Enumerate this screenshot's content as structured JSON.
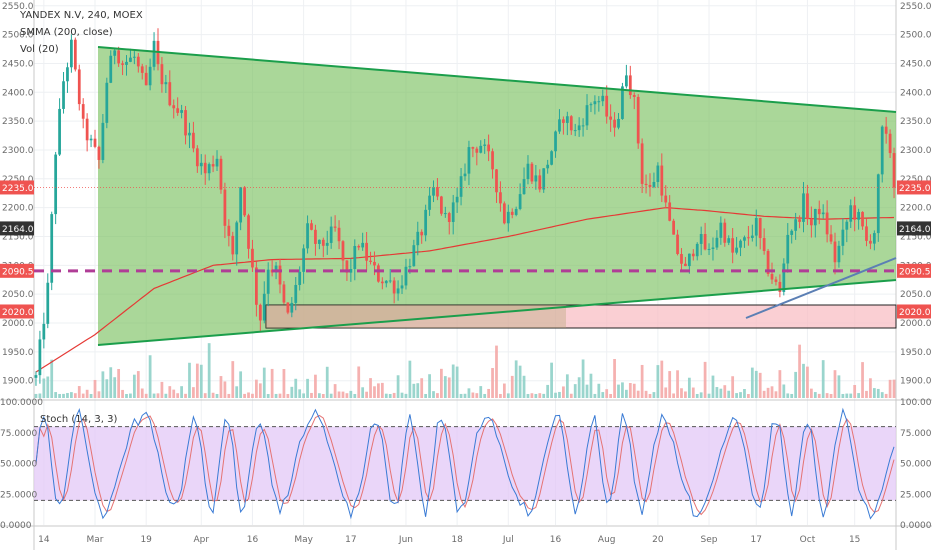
{
  "header": {
    "symbol": "YANDEX N.V, 240, MOEX",
    "indicator_smma": "SMMA (200, close)",
    "indicator_vol": "Vol (20)",
    "indicator_stoch": "Stoch (14, 3, 3)"
  },
  "colors": {
    "up": "#26a69a",
    "down": "#ef5350",
    "triangle_fill": "#7cc163",
    "triangle_line": "#1b9e4b",
    "smma": "#e53935",
    "support_dash": "#b03d96",
    "zone_fill": "#f8bbc0",
    "stoch_band": "#e3c8f7",
    "stoch_k": "#3a7bd5",
    "stoch_d": "#e57373",
    "trend_blue": "#5b7fb4"
  },
  "chart_data": [
    {
      "type": "candlestick",
      "panel": "price",
      "ylim": [
        1870,
        2560
      ],
      "y_ticks": [
        "2550.0",
        "2500.0",
        "2450.0",
        "2400.0",
        "2350.0",
        "2300.0",
        "2250.0",
        "2200.0",
        "2150.0",
        "2100.0",
        "2050.0",
        "2000.0",
        "1950.0",
        "1900.0"
      ],
      "price_labels_left": [
        {
          "value": 2235.0,
          "text": "2235.0",
          "color": "#ef5350"
        },
        {
          "value": 2164.0,
          "text": "2164.0",
          "color": "#333333"
        },
        {
          "value": 2090.5,
          "text": "2090.5",
          "color": "#ef5350"
        },
        {
          "value": 2020.0,
          "text": "2020.0",
          "color": "#ef5350"
        }
      ],
      "price_labels_right": [
        {
          "value": 2235.0,
          "text": "2235.0",
          "color": "#ef5350"
        },
        {
          "value": 2164.0,
          "text": "2164.0",
          "color": "#333333"
        },
        {
          "value": 2090.5,
          "text": "2090.5",
          "color": "#ef5350"
        },
        {
          "value": 2020.0,
          "text": "2020.0",
          "color": "#ef5350"
        }
      ],
      "x_ticks": [
        "14",
        "Mar",
        "19",
        "Apr",
        "16",
        "May",
        "17",
        "Jun",
        "18",
        "Jul",
        "16",
        "Aug",
        "20",
        "Sep",
        "17",
        "Oct",
        "15"
      ],
      "path_keypoints": [
        [
          0,
          1905
        ],
        [
          3,
          2060
        ],
        [
          5,
          2300
        ],
        [
          7,
          2420
        ],
        [
          9,
          2480
        ],
        [
          10,
          2430
        ],
        [
          12,
          2340
        ],
        [
          14,
          2310
        ],
        [
          16,
          2280
        ],
        [
          18,
          2420
        ],
        [
          20,
          2480
        ],
        [
          22,
          2450
        ],
        [
          25,
          2460
        ],
        [
          28,
          2400
        ],
        [
          30,
          2480
        ],
        [
          31,
          2440
        ],
        [
          34,
          2390
        ],
        [
          37,
          2360
        ],
        [
          40,
          2300
        ],
        [
          43,
          2260
        ],
        [
          46,
          2290
        ],
        [
          48,
          2180
        ],
        [
          50,
          2110
        ],
        [
          52,
          2240
        ],
        [
          54,
          2140
        ],
        [
          56,
          2040
        ],
        [
          57,
          2010
        ],
        [
          59,
          2100
        ],
        [
          61,
          2090
        ],
        [
          63,
          2030
        ],
        [
          64,
          2010
        ],
        [
          66,
          2060
        ],
        [
          69,
          2160
        ],
        [
          72,
          2130
        ],
        [
          76,
          2160
        ],
        [
          79,
          2080
        ],
        [
          82,
          2140
        ],
        [
          85,
          2100
        ],
        [
          87,
          2080
        ],
        [
          90,
          2070
        ],
        [
          92,
          2060
        ],
        [
          95,
          2110
        ],
        [
          98,
          2160
        ],
        [
          101,
          2230
        ],
        [
          104,
          2180
        ],
        [
          107,
          2210
        ],
        [
          110,
          2300
        ],
        [
          113,
          2310
        ],
        [
          116,
          2270
        ],
        [
          119,
          2180
        ],
        [
          122,
          2210
        ],
        [
          125,
          2270
        ],
        [
          128,
          2240
        ],
        [
          131,
          2300
        ],
        [
          134,
          2360
        ],
        [
          137,
          2330
        ],
        [
          140,
          2370
        ],
        [
          142,
          2390
        ],
        [
          144,
          2380
        ],
        [
          146,
          2340
        ],
        [
          148,
          2360
        ],
        [
          150,
          2440
        ],
        [
          152,
          2380
        ],
        [
          154,
          2250
        ],
        [
          156,
          2230
        ],
        [
          158,
          2270
        ],
        [
          160,
          2200
        ],
        [
          162,
          2140
        ],
        [
          165,
          2090
        ],
        [
          168,
          2150
        ],
        [
          171,
          2120
        ],
        [
          174,
          2170
        ],
        [
          177,
          2120
        ],
        [
          180,
          2140
        ],
        [
          183,
          2170
        ],
        [
          185,
          2110
        ],
        [
          187,
          2080
        ],
        [
          189,
          2050
        ],
        [
          191,
          2160
        ],
        [
          193,
          2170
        ],
        [
          195,
          2210
        ],
        [
          197,
          2170
        ],
        [
          199,
          2200
        ],
        [
          201,
          2160
        ],
        [
          203,
          2110
        ],
        [
          205,
          2150
        ],
        [
          207,
          2200
        ],
        [
          209,
          2180
        ],
        [
          211,
          2140
        ],
        [
          213,
          2160
        ],
        [
          215,
          2330
        ],
        [
          217,
          2300
        ],
        [
          218,
          2235
        ]
      ],
      "last_close": 2235.0
    },
    {
      "type": "line",
      "panel": "price",
      "name": "SMMA (200, close)",
      "path_keypoints": [
        [
          0,
          1915
        ],
        [
          15,
          1980
        ],
        [
          30,
          2060
        ],
        [
          45,
          2100
        ],
        [
          60,
          2110
        ],
        [
          80,
          2112
        ],
        [
          100,
          2125
        ],
        [
          120,
          2150
        ],
        [
          140,
          2180
        ],
        [
          160,
          2200
        ],
        [
          170,
          2195
        ],
        [
          185,
          2185
        ],
        [
          200,
          2180
        ],
        [
          218,
          2183
        ]
      ]
    },
    {
      "type": "bar",
      "panel": "volume",
      "name": "Vol (20)",
      "description_baseline": 1880
    },
    {
      "type": "line",
      "panel": "stoch",
      "name": "Stoch (14, 3, 3)",
      "ylim": [
        0,
        100
      ],
      "bands": [
        80,
        20
      ],
      "y_ticks": [
        "100.0000",
        "75.0000",
        "50.0000",
        "25.0000",
        "0.0000"
      ]
    }
  ]
}
